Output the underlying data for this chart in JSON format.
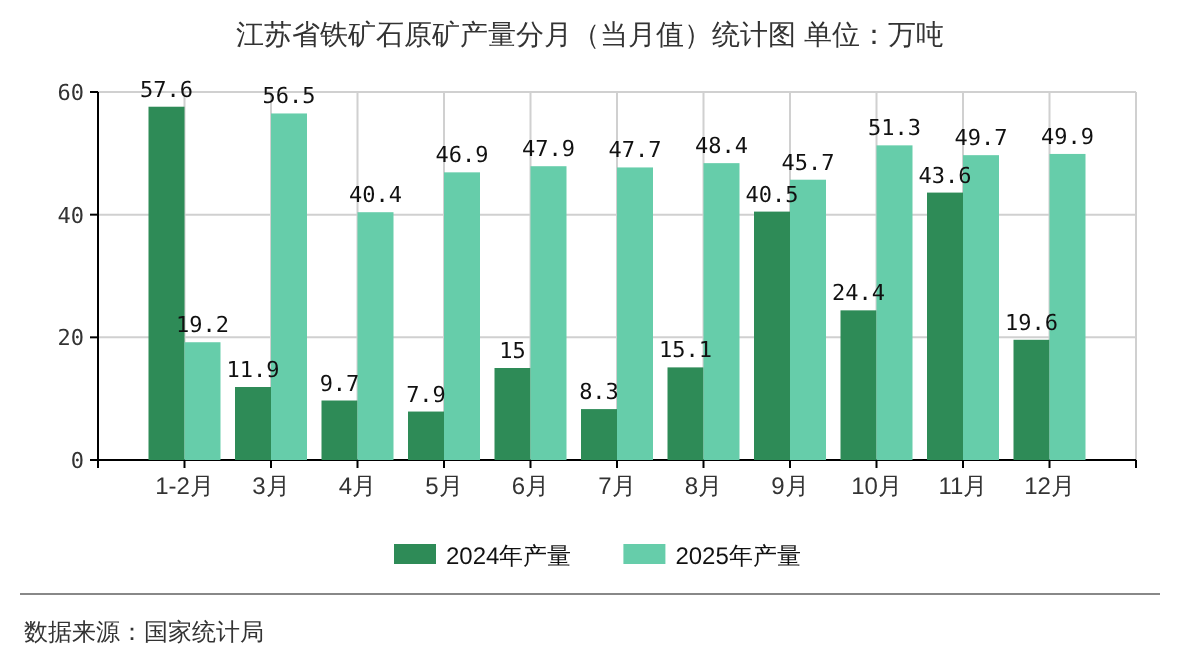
{
  "chart_data": {
    "type": "bar",
    "title": "江苏省铁矿石原矿产量分月（当月值）统计图 单位：万吨",
    "categories": [
      "1-2月",
      "3月",
      "4月",
      "5月",
      "6月",
      "7月",
      "8月",
      "9月",
      "10月",
      "11月",
      "12月"
    ],
    "series": [
      {
        "name": "2024年产量",
        "color": "#2e8b57",
        "values": [
          57.6,
          11.9,
          9.7,
          7.9,
          15,
          8.3,
          15.1,
          40.5,
          24.4,
          43.6,
          19.6
        ]
      },
      {
        "name": "2025年产量",
        "color": "#66cdaa",
        "values": [
          19.2,
          56.5,
          40.4,
          46.9,
          47.9,
          47.7,
          48.4,
          45.7,
          51.3,
          49.7,
          49.9
        ]
      }
    ],
    "ylim": [
      0,
      60
    ],
    "yticks": [
      0,
      20,
      40,
      60
    ],
    "grid": true,
    "legend": "bottom",
    "data_labels": true,
    "annotations": [
      "数据来源：国家统计局"
    ]
  }
}
